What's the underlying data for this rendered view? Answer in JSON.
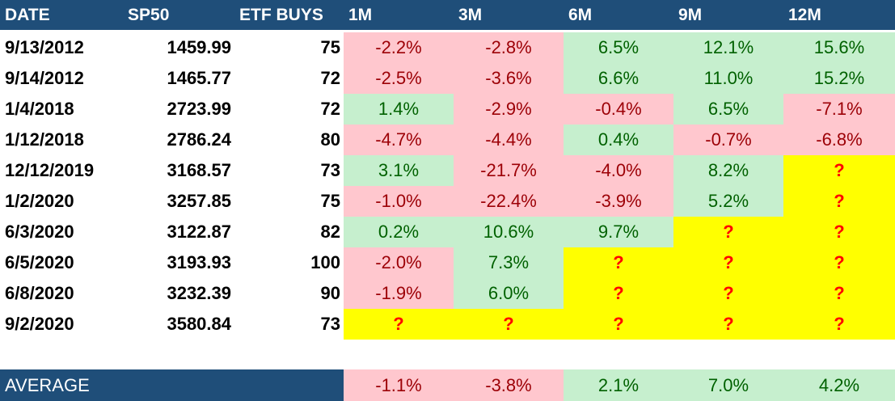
{
  "colors": {
    "header_bg": "#1f4e79",
    "negative_bg": "#ffc7ce",
    "negative_text": "#9c0006",
    "positive_bg": "#c6efce",
    "positive_text": "#006100",
    "unknown_bg": "#ffff00",
    "unknown_text": "#ff0000"
  },
  "chart_data": {
    "type": "table",
    "columns": [
      "DATE",
      "SP50",
      "ETF BUYS",
      "1M",
      "3M",
      "6M",
      "9M",
      "12M"
    ],
    "rows": [
      [
        "9/13/2012",
        "1459.99",
        "75",
        "-2.2%",
        "-2.8%",
        "6.5%",
        "12.1%",
        "15.6%"
      ],
      [
        "9/14/2012",
        "1465.77",
        "72",
        "-2.5%",
        "-3.6%",
        "6.6%",
        "11.0%",
        "15.2%"
      ],
      [
        "1/4/2018",
        "2723.99",
        "72",
        "1.4%",
        "-2.9%",
        "-0.4%",
        "6.5%",
        "-7.1%"
      ],
      [
        "1/12/2018",
        "2786.24",
        "80",
        "-4.7%",
        "-4.4%",
        "0.4%",
        "-0.7%",
        "-6.8%"
      ],
      [
        "12/12/2019",
        "3168.57",
        "73",
        "3.1%",
        "-21.7%",
        "-4.0%",
        "8.2%",
        "?"
      ],
      [
        "1/2/2020",
        "3257.85",
        "75",
        "-1.0%",
        "-22.4%",
        "-3.9%",
        "5.2%",
        "?"
      ],
      [
        "6/3/2020",
        "3122.87",
        "82",
        "0.2%",
        "10.6%",
        "9.7%",
        "?",
        "?"
      ],
      [
        "6/5/2020",
        "3193.93",
        "100",
        "-2.0%",
        "7.3%",
        "?",
        "?",
        "?"
      ],
      [
        "6/8/2020",
        "3232.39",
        "90",
        "-1.9%",
        "6.0%",
        "?",
        "?",
        "?"
      ],
      [
        "9/2/2020",
        "3580.84",
        "73",
        "?",
        "?",
        "?",
        "?",
        "?"
      ]
    ],
    "average": {
      "label": "AVERAGE",
      "values": [
        "-1.1%",
        "-3.8%",
        "2.1%",
        "7.0%",
        "4.2%"
      ]
    }
  }
}
